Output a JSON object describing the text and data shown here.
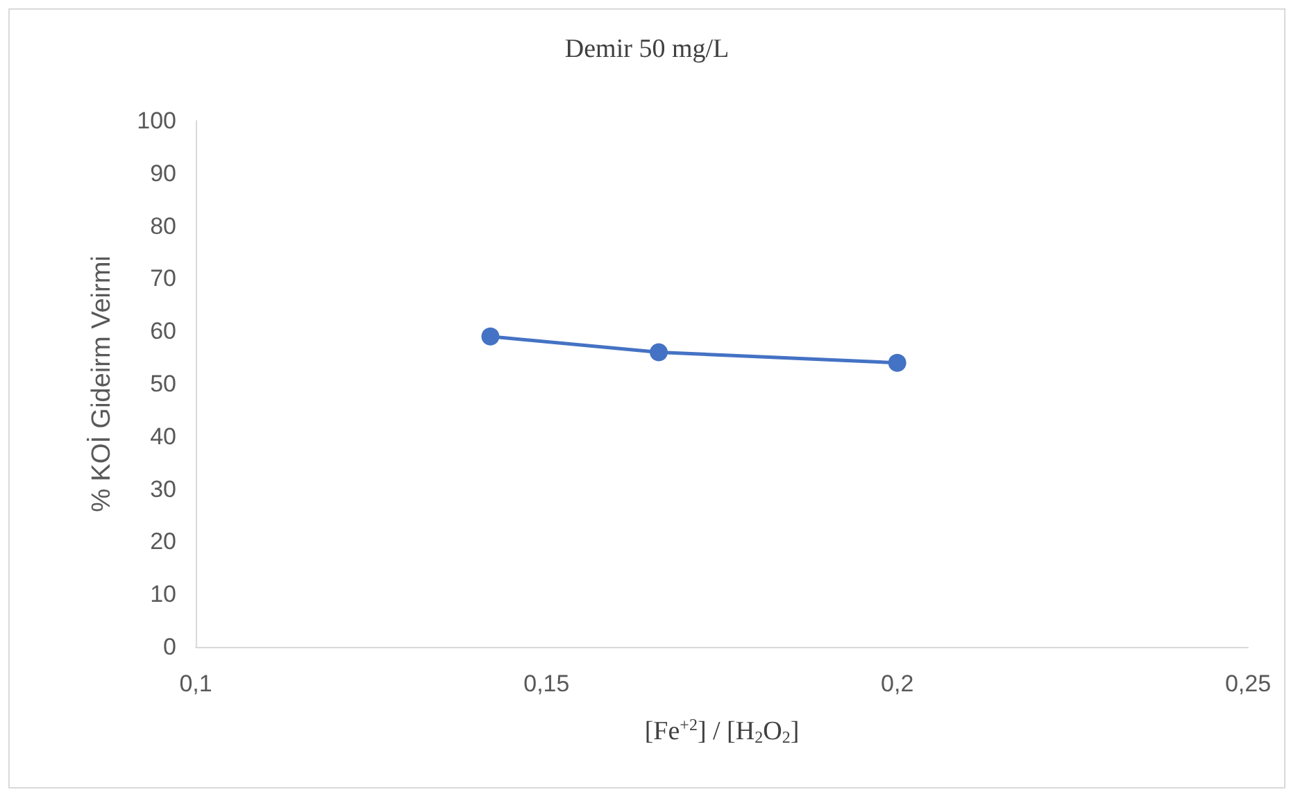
{
  "chart_data": {
    "type": "line",
    "title": "Demir 50 mg/L",
    "xlabel": "[Fe$^{+2}$] / [H$_{2}$O$_{2}$]",
    "ylabel": "% KOİ Gideirm Veirmi",
    "x": [
      0.142,
      0.166,
      0.2
    ],
    "series": [
      {
        "color": "#4472c4",
        "values": [
          59,
          56,
          54
        ]
      }
    ],
    "xlim": [
      0.1,
      0.25
    ],
    "xticks": [
      {
        "value": 0.1,
        "label": "0,1"
      },
      {
        "value": 0.15,
        "label": "0,15"
      },
      {
        "value": 0.2,
        "label": "0,2"
      },
      {
        "value": 0.25,
        "label": "0,25"
      }
    ],
    "ylim": [
      0,
      100
    ],
    "yticks": [
      0,
      10,
      20,
      30,
      40,
      50,
      60,
      70,
      80,
      90,
      100
    ],
    "grid": false,
    "marker": "circle",
    "line_style": "solid"
  }
}
